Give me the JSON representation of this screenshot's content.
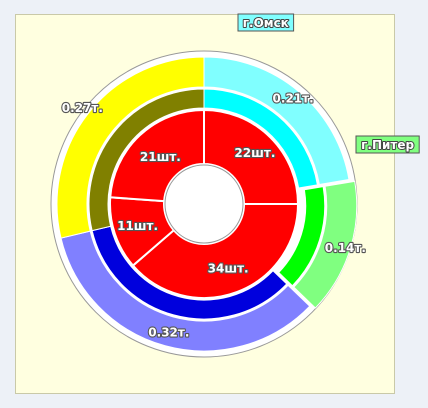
{
  "chart_data": {
    "type": "pie",
    "subtype": "nested-donut",
    "inner_ring": {
      "unit_suffix": "шт.",
      "slices": [
        {
          "label": "22шт.",
          "value": 22,
          "color": "#ff0000"
        },
        {
          "label": "34шт.",
          "value": 34,
          "color": "#ff0000"
        },
        {
          "label": "11шт.",
          "value": 11,
          "color": "#ff0000"
        },
        {
          "label": "21шт.",
          "value": 21,
          "color": "#ff0000"
        }
      ]
    },
    "middle_ring": {
      "slices": [
        {
          "value": 0.21,
          "color": "#00ffff"
        },
        {
          "value": 0.14,
          "color": "#00ff00"
        },
        {
          "value": 0.32,
          "color": "#0000dd"
        },
        {
          "value": 0.27,
          "color": "#808000"
        }
      ]
    },
    "outer_ring": {
      "unit_suffix": "т.",
      "slices": [
        {
          "label": "0.21т.",
          "value": 0.21,
          "color": "#80ffff"
        },
        {
          "label": "0.14т.",
          "value": 0.14,
          "color": "#80ff80"
        },
        {
          "label": "0.32т.",
          "value": 0.32,
          "color": "#8080ff"
        },
        {
          "label": "0.27т.",
          "value": 0.27,
          "color": "#ffff00"
        }
      ]
    },
    "tags": [
      {
        "text": "г.Омск",
        "slice": 0,
        "color": "#80ffff"
      },
      {
        "text": "г.Питер",
        "slice": 1,
        "color": "#80ff80"
      }
    ],
    "exploded_slices": [
      1
    ],
    "background": "#ffffe0",
    "page_background": "#edf1f7"
  }
}
